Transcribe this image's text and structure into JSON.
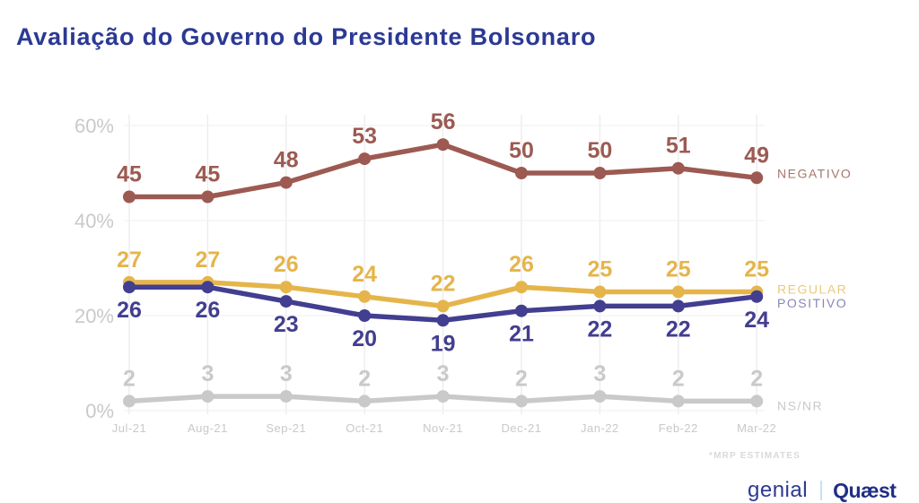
{
  "title": "Avaliação do Governo do Presidente Bolsonaro",
  "title_color": "#2b3994",
  "footnote": "*MRP ESTIMATES",
  "logos": {
    "left": {
      "text": "genial",
      "color": "#2c3a92"
    },
    "right": {
      "text": "Quæst",
      "color": "#1f2e87"
    }
  },
  "chart_data": {
    "type": "line",
    "title": "Avaliação do Governo do Presidente Bolsonaro",
    "x": [
      "Jul-21",
      "Aug-21",
      "Sep-21",
      "Oct-21",
      "Nov-21",
      "Dec-21",
      "Jan-22",
      "Feb-22",
      "Mar-22"
    ],
    "series": [
      {
        "name": "NEGATIVO",
        "values": [
          45,
          45,
          48,
          53,
          56,
          50,
          50,
          51,
          49
        ],
        "color": "#9c5a52",
        "legend_color": "#a8766e",
        "value_label_position": "above",
        "legend_dy": -5
      },
      {
        "name": "REGULAR",
        "values": [
          27,
          27,
          26,
          24,
          22,
          26,
          25,
          25,
          25
        ],
        "color": "#e5b54b",
        "legend_color": "#eac97c",
        "value_label_position": "above",
        "legend_dy": -3
      },
      {
        "name": "POSITIVO",
        "values": [
          26,
          26,
          23,
          20,
          19,
          21,
          22,
          22,
          24
        ],
        "color": "#423e90",
        "legend_color": "#8a87b1",
        "value_label_position": "below",
        "legend_dy": 7
      },
      {
        "name": "NS/NR",
        "values": [
          2,
          3,
          3,
          2,
          3,
          2,
          3,
          2,
          2
        ],
        "color": "#c9c9c9",
        "legend_color": "#c9c9c9",
        "value_label_position": "above",
        "legend_dy": 5
      }
    ],
    "yticks": [
      0,
      20,
      40,
      60
    ],
    "ytick_labels": [
      "0%",
      "20%",
      "40%",
      "60%"
    ],
    "ylim": [
      0,
      65
    ],
    "xlabel": "",
    "ylabel": "",
    "grid": "vertical-prominent-horizontal-faint",
    "legend_position": "right-of-last-point",
    "axis_label_color": "#c9c9c9",
    "grid_color_vertical": "#ececec",
    "grid_color_horizontal": "#f2f2f2"
  }
}
